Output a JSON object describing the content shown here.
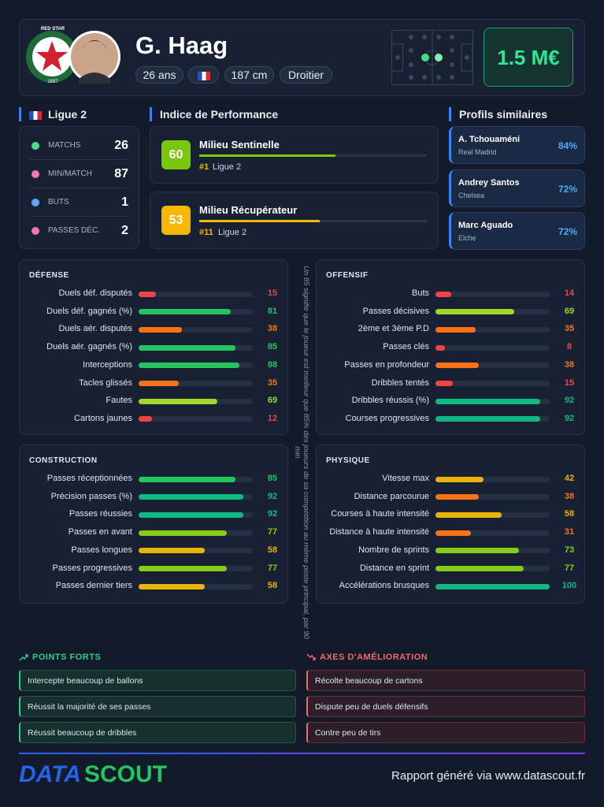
{
  "header": {
    "badge_text": "RED STAR",
    "badge_year": "1897",
    "name": "G. Haag",
    "age": "26 ans",
    "height": "187 cm",
    "foot": "Droitier",
    "market_value": "1.5 M€"
  },
  "league": {
    "title": "Ligue 2",
    "stats": [
      {
        "label": "MATCHS",
        "value": 26
      },
      {
        "label": "MIN/MATCH",
        "value": 87
      },
      {
        "label": "BUTS",
        "value": 1
      },
      {
        "label": "PASSES DÉC.",
        "value": 2
      }
    ]
  },
  "performance": {
    "title": "Indice de Performance",
    "items": [
      {
        "score": 60,
        "role": "Milieu Sentinelle",
        "rank": "#1",
        "league": "Ligue 2"
      },
      {
        "score": 53,
        "role": "Milieu Récupérateur",
        "rank": "#11",
        "league": "Ligue 2"
      }
    ]
  },
  "similar": {
    "title": "Profils similaires",
    "items": [
      {
        "name": "A. Tchouaméni",
        "club": "Real Madrid",
        "match": "84%"
      },
      {
        "name": "Andrey Santos",
        "club": "Chelsea",
        "match": "72%"
      },
      {
        "name": "Marc Aguado",
        "club": "Elche",
        "match": "72%"
      }
    ]
  },
  "panels": [
    {
      "title": "DÉFENSE",
      "stats": [
        {
          "label": "Duels déf. disputés",
          "value": 15
        },
        {
          "label": "Duels déf. gagnés (%)",
          "value": 81
        },
        {
          "label": "Duels aér. disputés",
          "value": 38
        },
        {
          "label": "Duels aér. gagnés (%)",
          "value": 85
        },
        {
          "label": "Interceptions",
          "value": 88
        },
        {
          "label": "Tacles glissés",
          "value": 35
        },
        {
          "label": "Fautes",
          "value": 69
        },
        {
          "label": "Cartons jaunes",
          "value": 12
        }
      ]
    },
    {
      "title": "OFFENSIF",
      "stats": [
        {
          "label": "Buts",
          "value": 14
        },
        {
          "label": "Passes décisives",
          "value": 69
        },
        {
          "label": "2ème et 3ème P.D",
          "value": 35
        },
        {
          "label": "Passes clés",
          "value": 8
        },
        {
          "label": "Passes en profondeur",
          "value": 38
        },
        {
          "label": "Dribbles tentés",
          "value": 15
        },
        {
          "label": "Dribbles réussis (%)",
          "value": 92
        },
        {
          "label": "Courses progressives",
          "value": 92
        }
      ]
    },
    {
      "title": "CONSTRUCTION",
      "stats": [
        {
          "label": "Passes réceptionnées",
          "value": 85
        },
        {
          "label": "Précision passes (%)",
          "value": 92
        },
        {
          "label": "Passes réussies",
          "value": 92
        },
        {
          "label": "Passes en avant",
          "value": 77
        },
        {
          "label": "Passes longues",
          "value": 58
        },
        {
          "label": "Passes progressives",
          "value": 77
        },
        {
          "label": "Passes dernier tiers",
          "value": 58
        }
      ]
    },
    {
      "title": "PHYSIQUE",
      "stats": [
        {
          "label": "Vitesse max",
          "value": 42
        },
        {
          "label": "Distance parcourue",
          "value": 38
        },
        {
          "label": "Courses à haute intensité",
          "value": 58
        },
        {
          "label": "Distance à haute intensité",
          "value": 31
        },
        {
          "label": "Nombre de sprints",
          "value": 73
        },
        {
          "label": "Distance en sprint",
          "value": 77
        },
        {
          "label": "Accélérations brusques",
          "value": 100
        }
      ]
    }
  ],
  "note": "Un 85 signifie que le joueur est meilleur que 85% des joueurs de sa compétition au même poste principal, par 90 min",
  "strengths": {
    "title": "POINTS FORTS",
    "items": [
      "Intercepte beaucoup de ballons",
      "Réussit la majorité de ses passes",
      "Réussit beaucoup de dribbles"
    ]
  },
  "improvements": {
    "title": "AXES D'AMÉLIORATION",
    "items": [
      "Récolte beaucoup de cartons",
      "Dispute peu de duels défensifs",
      "Contre peu de tirs"
    ]
  },
  "footer": {
    "logo_left": "DATA",
    "logo_right": "SCOUT",
    "credit": "Rapport généré via www.datascout.fr"
  }
}
